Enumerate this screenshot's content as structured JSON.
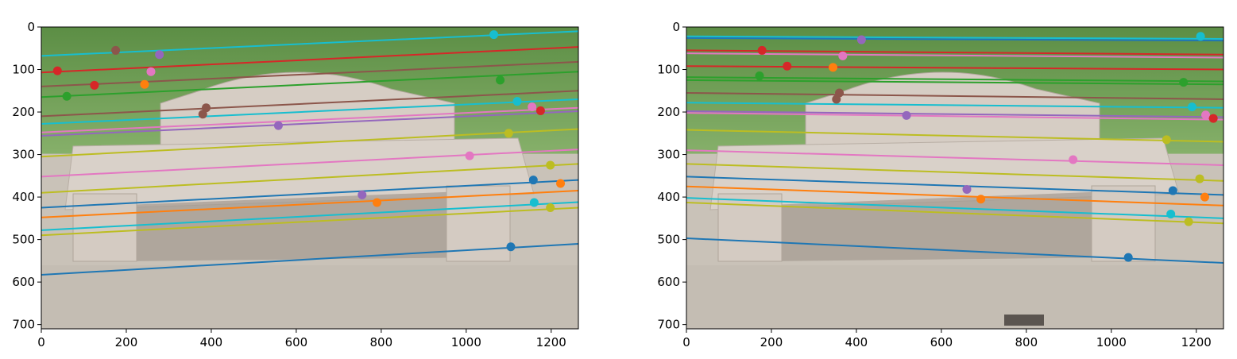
{
  "figure": {
    "panels": [
      {
        "id": "left",
        "image_name": "bench-photo-left"
      },
      {
        "id": "right",
        "image_name": "bench-photo-right"
      }
    ]
  },
  "chart_data": [
    {
      "type": "scatter",
      "title": "",
      "xlabel": "",
      "ylabel": "",
      "xlim": [
        0,
        1264
      ],
      "ylim": [
        710,
        0
      ],
      "xticks": [
        0,
        200,
        400,
        600,
        800,
        1000,
        1200
      ],
      "yticks": [
        0,
        100,
        200,
        300,
        400,
        500,
        600,
        700
      ],
      "grid": false,
      "background": "photo of a concrete bench on grass",
      "lines": [
        {
          "color": "#1f77b4",
          "x": [
            0,
            1264
          ],
          "y": [
            583,
            510
          ]
        },
        {
          "color": "#17becf",
          "x": [
            0,
            1264
          ],
          "y": [
            68,
            10
          ]
        },
        {
          "color": "#d62728",
          "x": [
            0,
            1264
          ],
          "y": [
            107,
            47
          ]
        },
        {
          "color": "#8c564b",
          "x": [
            0,
            1264
          ],
          "y": [
            140,
            82
          ]
        },
        {
          "color": "#2ca02c",
          "x": [
            0,
            1264
          ],
          "y": [
            165,
            105
          ]
        },
        {
          "color": "#8c564b",
          "x": [
            0,
            1264
          ],
          "y": [
            210,
            150
          ]
        },
        {
          "color": "#17becf",
          "x": [
            0,
            1264
          ],
          "y": [
            228,
            170
          ]
        },
        {
          "color": "#e377c2",
          "x": [
            0,
            1264
          ],
          "y": [
            248,
            190
          ]
        },
        {
          "color": "#9467bd",
          "x": [
            0,
            1264
          ],
          "y": [
            256,
            198
          ]
        },
        {
          "color": "#bcbd22",
          "x": [
            0,
            1264
          ],
          "y": [
            305,
            240
          ]
        },
        {
          "color": "#e377c2",
          "x": [
            0,
            1264
          ],
          "y": [
            352,
            288
          ]
        },
        {
          "color": "#bcbd22",
          "x": [
            0,
            1264
          ],
          "y": [
            390,
            322
          ]
        },
        {
          "color": "#1f77b4",
          "x": [
            0,
            1264
          ],
          "y": [
            425,
            360
          ]
        },
        {
          "color": "#ff7f0e",
          "x": [
            0,
            1264
          ],
          "y": [
            448,
            385
          ]
        },
        {
          "color": "#17becf",
          "x": [
            0,
            1264
          ],
          "y": [
            478,
            412
          ]
        },
        {
          "color": "#bcbd22",
          "x": [
            0,
            1264
          ],
          "y": [
            490,
            425
          ]
        }
      ],
      "points": [
        {
          "color": "#d62728",
          "x": 38,
          "y": 103
        },
        {
          "color": "#d62728",
          "x": 125,
          "y": 137
        },
        {
          "color": "#2ca02c",
          "x": 60,
          "y": 163
        },
        {
          "color": "#8c564b",
          "x": 175,
          "y": 55
        },
        {
          "color": "#9467bd",
          "x": 278,
          "y": 65
        },
        {
          "color": "#e377c2",
          "x": 258,
          "y": 105
        },
        {
          "color": "#ff7f0e",
          "x": 243,
          "y": 135
        },
        {
          "color": "#8c564b",
          "x": 388,
          "y": 190
        },
        {
          "color": "#8c564b",
          "x": 380,
          "y": 205
        },
        {
          "color": "#9467bd",
          "x": 558,
          "y": 232
        },
        {
          "color": "#17becf",
          "x": 1065,
          "y": 18
        },
        {
          "color": "#2ca02c",
          "x": 1080,
          "y": 125
        },
        {
          "color": "#17becf",
          "x": 1120,
          "y": 175
        },
        {
          "color": "#e377c2",
          "x": 1155,
          "y": 188
        },
        {
          "color": "#d62728",
          "x": 1175,
          "y": 197
        },
        {
          "color": "#bcbd22",
          "x": 1100,
          "y": 250
        },
        {
          "color": "#e377c2",
          "x": 1008,
          "y": 303
        },
        {
          "color": "#bcbd22",
          "x": 1198,
          "y": 325
        },
        {
          "color": "#1f77b4",
          "x": 1158,
          "y": 360
        },
        {
          "color": "#ff7f0e",
          "x": 1222,
          "y": 368
        },
        {
          "color": "#ff7f0e",
          "x": 790,
          "y": 413
        },
        {
          "color": "#17becf",
          "x": 1160,
          "y": 413
        },
        {
          "color": "#bcbd22",
          "x": 1198,
          "y": 425
        },
        {
          "color": "#1f77b4",
          "x": 1105,
          "y": 517
        },
        {
          "color": "#9467bd",
          "x": 755,
          "y": 395
        }
      ]
    },
    {
      "type": "scatter",
      "title": "",
      "xlabel": "",
      "ylabel": "",
      "xlim": [
        0,
        1264
      ],
      "ylim": [
        710,
        0
      ],
      "xticks": [
        0,
        200,
        400,
        600,
        800,
        1000,
        1200
      ],
      "yticks": [
        0,
        100,
        200,
        300,
        400,
        500,
        600,
        700
      ],
      "grid": false,
      "background": "photo of a concrete bench on grass",
      "lines": [
        {
          "color": "#17becf",
          "x": [
            0,
            1264
          ],
          "y": [
            22,
            28
          ]
        },
        {
          "color": "#1f77b4",
          "x": [
            0,
            1264
          ],
          "y": [
            26,
            32
          ]
        },
        {
          "color": "#d62728",
          "x": [
            0,
            1264
          ],
          "y": [
            55,
            65
          ]
        },
        {
          "color": "#e377c2",
          "x": [
            0,
            1264
          ],
          "y": [
            62,
            72
          ]
        },
        {
          "color": "#d62728",
          "x": [
            0,
            1264
          ],
          "y": [
            92,
            100
          ]
        },
        {
          "color": "#2ca02c",
          "x": [
            0,
            1264
          ],
          "y": [
            118,
            128
          ]
        },
        {
          "color": "#2ca02c",
          "x": [
            0,
            1264
          ],
          "y": [
            125,
            135
          ]
        },
        {
          "color": "#8c564b",
          "x": [
            0,
            1264
          ],
          "y": [
            155,
            170
          ]
        },
        {
          "color": "#17becf",
          "x": [
            0,
            1264
          ],
          "y": [
            178,
            190
          ]
        },
        {
          "color": "#9467bd",
          "x": [
            0,
            1264
          ],
          "y": [
            198,
            212
          ]
        },
        {
          "color": "#e377c2",
          "x": [
            0,
            1264
          ],
          "y": [
            202,
            218
          ]
        },
        {
          "color": "#bcbd22",
          "x": [
            0,
            1264
          ],
          "y": [
            242,
            270
          ]
        },
        {
          "color": "#e377c2",
          "x": [
            0,
            1264
          ],
          "y": [
            290,
            325
          ]
        },
        {
          "color": "#bcbd22",
          "x": [
            0,
            1264
          ],
          "y": [
            322,
            362
          ]
        },
        {
          "color": "#1f77b4",
          "x": [
            0,
            1264
          ],
          "y": [
            352,
            395
          ]
        },
        {
          "color": "#ff7f0e",
          "x": [
            0,
            1264
          ],
          "y": [
            375,
            420
          ]
        },
        {
          "color": "#17becf",
          "x": [
            0,
            1264
          ],
          "y": [
            402,
            450
          ]
        },
        {
          "color": "#bcbd22",
          "x": [
            0,
            1264
          ],
          "y": [
            413,
            462
          ]
        },
        {
          "color": "#1f77b4",
          "x": [
            0,
            1264
          ],
          "y": [
            497,
            555
          ]
        }
      ],
      "points": [
        {
          "color": "#d62728",
          "x": 178,
          "y": 55
        },
        {
          "color": "#d62728",
          "x": 237,
          "y": 92
        },
        {
          "color": "#2ca02c",
          "x": 172,
          "y": 115
        },
        {
          "color": "#ff7f0e",
          "x": 345,
          "y": 95
        },
        {
          "color": "#e377c2",
          "x": 368,
          "y": 68
        },
        {
          "color": "#9467bd",
          "x": 412,
          "y": 30
        },
        {
          "color": "#8c564b",
          "x": 360,
          "y": 155
        },
        {
          "color": "#8c564b",
          "x": 353,
          "y": 170
        },
        {
          "color": "#9467bd",
          "x": 518,
          "y": 208
        },
        {
          "color": "#17becf",
          "x": 1210,
          "y": 22
        },
        {
          "color": "#2ca02c",
          "x": 1170,
          "y": 130
        },
        {
          "color": "#17becf",
          "x": 1190,
          "y": 188
        },
        {
          "color": "#e377c2",
          "x": 1222,
          "y": 207
        },
        {
          "color": "#d62728",
          "x": 1240,
          "y": 215
        },
        {
          "color": "#bcbd22",
          "x": 1130,
          "y": 265
        },
        {
          "color": "#e377c2",
          "x": 910,
          "y": 312
        },
        {
          "color": "#bcbd22",
          "x": 1208,
          "y": 357
        },
        {
          "color": "#1f77b4",
          "x": 1145,
          "y": 385
        },
        {
          "color": "#ff7f0e",
          "x": 1220,
          "y": 400
        },
        {
          "color": "#ff7f0e",
          "x": 693,
          "y": 405
        },
        {
          "color": "#17becf",
          "x": 1140,
          "y": 440
        },
        {
          "color": "#bcbd22",
          "x": 1182,
          "y": 458
        },
        {
          "color": "#1f77b4",
          "x": 1040,
          "y": 542
        },
        {
          "color": "#9467bd",
          "x": 660,
          "y": 382
        }
      ]
    }
  ]
}
